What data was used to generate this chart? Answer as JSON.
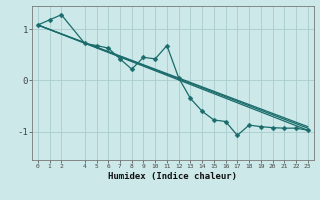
{
  "xlabel": "Humidex (Indice chaleur)",
  "background_color": "#cce8e8",
  "grid_color": "#aacccc",
  "line_color": "#1a6b6b",
  "xlim": [
    -0.5,
    23.5
  ],
  "ylim": [
    -1.55,
    1.45
  ],
  "yticks": [
    -1,
    0,
    1
  ],
  "xticks": [
    0,
    1,
    2,
    4,
    5,
    6,
    7,
    8,
    9,
    10,
    11,
    12,
    13,
    14,
    15,
    16,
    17,
    18,
    19,
    20,
    21,
    22,
    23
  ],
  "line_zigzag": {
    "x": [
      0,
      1,
      2,
      4,
      5,
      6,
      7,
      8,
      9,
      10,
      11,
      12,
      13,
      14,
      15,
      16,
      17,
      18,
      19,
      20,
      21,
      22,
      23
    ],
    "y": [
      1.08,
      1.18,
      1.28,
      0.72,
      0.68,
      0.63,
      0.42,
      0.22,
      0.45,
      0.42,
      0.68,
      0.05,
      -0.35,
      -0.6,
      -0.77,
      -0.8,
      -1.07,
      -0.87,
      -0.9,
      -0.92,
      -0.93,
      -0.93,
      -0.97
    ]
  },
  "line_straight1": {
    "x": [
      0,
      23
    ],
    "y": [
      1.08,
      -0.97
    ]
  },
  "line_straight2": {
    "x": [
      0,
      23
    ],
    "y": [
      1.08,
      -0.93
    ]
  },
  "line_straight3": {
    "x": [
      0,
      23
    ],
    "y": [
      1.08,
      -0.9
    ]
  }
}
